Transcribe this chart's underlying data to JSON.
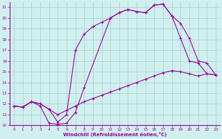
{
  "xlabel": "Windchill (Refroidissement éolien,°C)",
  "xlim": [
    -0.5,
    23.5
  ],
  "ylim": [
    10,
    21.5
  ],
  "xticks": [
    0,
    1,
    2,
    3,
    4,
    5,
    6,
    7,
    8,
    9,
    10,
    11,
    12,
    13,
    14,
    15,
    16,
    17,
    18,
    19,
    20,
    21,
    22,
    23
  ],
  "yticks": [
    10,
    11,
    12,
    13,
    14,
    15,
    16,
    17,
    18,
    19,
    20,
    21
  ],
  "background_color": "#d0f0f0",
  "grid_color": "#aacccc",
  "line_color": "#990099",
  "curve1_x": [
    0,
    1,
    2,
    3,
    4,
    5,
    6,
    7,
    8,
    11,
    12,
    13,
    14,
    15,
    16,
    17,
    18,
    19,
    20,
    21,
    22,
    23
  ],
  "curve1_y": [
    11.8,
    11.7,
    12.2,
    11.8,
    10.2,
    10.1,
    10.2,
    11.2,
    13.5,
    20.0,
    20.5,
    20.8,
    20.6,
    20.5,
    21.2,
    21.3,
    20.2,
    18.1,
    16.0,
    15.8,
    14.8,
    14.7
  ],
  "curve2_x": [
    0,
    1,
    2,
    3,
    4,
    5,
    6,
    7,
    8,
    9,
    10,
    11,
    12,
    13,
    14,
    15,
    16,
    17,
    18,
    19,
    20,
    21,
    22,
    23
  ],
  "curve2_y": [
    11.8,
    11.7,
    12.2,
    12.0,
    11.5,
    10.3,
    11.0,
    17.0,
    18.5,
    19.2,
    19.6,
    20.0,
    20.5,
    20.8,
    20.6,
    20.5,
    21.2,
    21.3,
    20.2,
    19.5,
    18.1,
    16.0,
    15.8,
    14.7
  ],
  "curve3_x": [
    0,
    1,
    2,
    3,
    4,
    5,
    6,
    7,
    8,
    9,
    10,
    11,
    12,
    13,
    14,
    15,
    16,
    17,
    18,
    19,
    20,
    21,
    22,
    23
  ],
  "curve3_y": [
    11.8,
    11.7,
    12.2,
    12.0,
    11.5,
    11.0,
    11.4,
    11.8,
    12.2,
    12.5,
    12.8,
    13.1,
    13.4,
    13.7,
    14.0,
    14.3,
    14.6,
    14.9,
    15.1,
    15.0,
    14.8,
    14.6,
    14.8,
    14.7
  ]
}
